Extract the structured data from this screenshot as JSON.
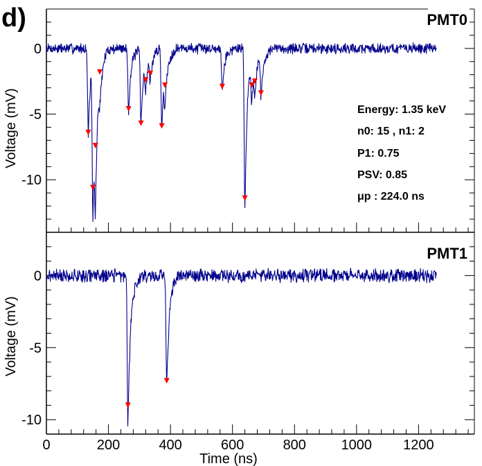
{
  "figure": {
    "panel_letter": "d)",
    "info": {
      "energy": "Energy: 1.35 keV",
      "counts": "n0: 15 , n1: 2",
      "p1": "P1: 0.75",
      "psv": "PSV: 0.85",
      "mu_p": "μp : 224.0 ns"
    }
  },
  "chart_data": [
    {
      "type": "line",
      "title": "PMT0",
      "xlabel": "Time (ns)",
      "ylabel": "Voltage (mV)",
      "xlim": [
        0,
        1380
      ],
      "ylim": [
        -14,
        3
      ],
      "x_ticks": [
        0,
        200,
        400,
        600,
        800,
        1000,
        1200
      ],
      "x_tick_labels": [
        "0",
        "200",
        "400",
        "600",
        "800",
        "1000",
        "1200"
      ],
      "y_ticks": [
        0,
        -5,
        -10
      ],
      "y_tick_labels": [
        "0",
        "-5",
        "-10"
      ],
      "color": "#00008B",
      "marker_color": "#FF0000",
      "noise_amplitude": 0.35,
      "trace_end": 1258,
      "pulses": [
        {
          "t": 135,
          "depth": 6.4
        },
        {
          "t": 150,
          "depth": 12.3
        },
        {
          "t": 158,
          "depth": 7.4
        },
        {
          "t": 172,
          "depth": 1.8
        },
        {
          "t": 265,
          "depth": 4.7
        },
        {
          "t": 305,
          "depth": 5.8
        },
        {
          "t": 320,
          "depth": 2.4
        },
        {
          "t": 335,
          "depth": 1.9
        },
        {
          "t": 372,
          "depth": 6.0
        },
        {
          "t": 382,
          "depth": 2.9
        },
        {
          "t": 567,
          "depth": 3.0
        },
        {
          "t": 640,
          "depth": 12.0
        },
        {
          "t": 662,
          "depth": 2.9
        },
        {
          "t": 672,
          "depth": 2.5
        },
        {
          "t": 692,
          "depth": 3.4
        }
      ],
      "markers": [
        {
          "t": 135,
          "v": -6.4
        },
        {
          "t": 150,
          "v": -10.6
        },
        {
          "t": 158,
          "v": -7.4
        },
        {
          "t": 172,
          "v": -1.8
        },
        {
          "t": 265,
          "v": -4.6
        },
        {
          "t": 305,
          "v": -5.7
        },
        {
          "t": 320,
          "v": -2.4
        },
        {
          "t": 335,
          "v": -1.9
        },
        {
          "t": 372,
          "v": -5.9
        },
        {
          "t": 382,
          "v": -2.8
        },
        {
          "t": 567,
          "v": -2.9
        },
        {
          "t": 640,
          "v": -11.4
        },
        {
          "t": 662,
          "v": -2.8
        },
        {
          "t": 672,
          "v": -2.5
        },
        {
          "t": 692,
          "v": -3.4
        }
      ]
    },
    {
      "type": "line",
      "title": "PMT1",
      "xlabel": "Time (ns)",
      "ylabel": "Voltage (mV)",
      "xlim": [
        0,
        1380
      ],
      "ylim": [
        -11,
        3
      ],
      "x_ticks": [
        0,
        200,
        400,
        600,
        800,
        1000,
        1200
      ],
      "x_tick_labels": [
        "0",
        "200",
        "400",
        "600",
        "800",
        "1000",
        "1200"
      ],
      "y_ticks": [
        0,
        -5,
        -10
      ],
      "y_tick_labels": [
        "0",
        "-5",
        "-10"
      ],
      "color": "#00008B",
      "marker_color": "#FF0000",
      "noise_amplitude": 0.4,
      "trace_end": 1258,
      "pulses": [
        {
          "t": 263,
          "depth": 10.4
        },
        {
          "t": 388,
          "depth": 7.7
        }
      ],
      "markers": [
        {
          "t": 263,
          "v": -9.0
        },
        {
          "t": 388,
          "v": -7.3
        }
      ]
    }
  ]
}
